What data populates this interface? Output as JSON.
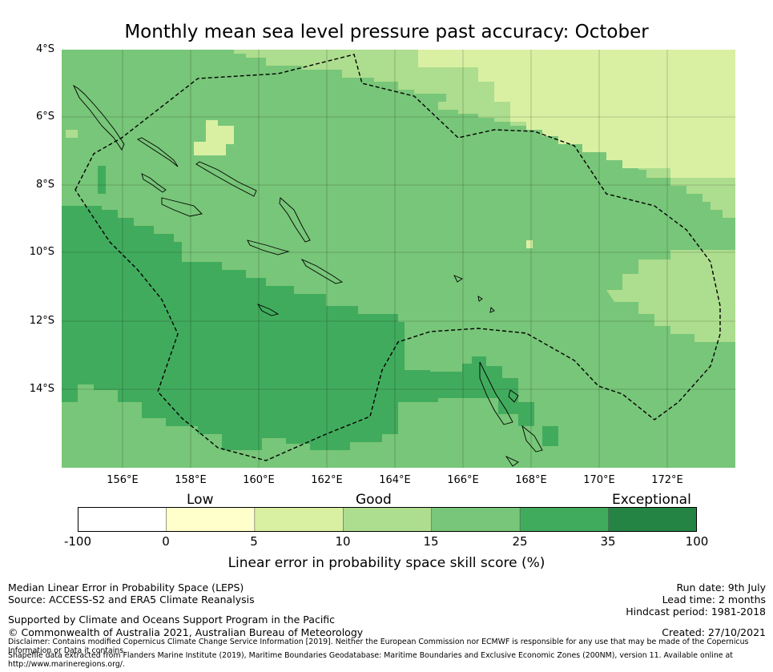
{
  "title": "Monthly mean sea level pressure past accuracy: October",
  "map": {
    "lat_labels": [
      "4°S",
      "6°S",
      "8°S",
      "10°S",
      "12°S",
      "14°S"
    ],
    "lon_labels": [
      "156°E",
      "158°E",
      "160°E",
      "162°E",
      "164°E",
      "166°E",
      "168°E",
      "170°E",
      "172°E"
    ],
    "extent": {
      "lon_min": 154.2,
      "lon_max": 174.0,
      "lat_min": -16.5,
      "lat_max": -4.0
    }
  },
  "colorbar": {
    "bands": [
      {
        "from": -100,
        "to": 0,
        "color": "#ffffff"
      },
      {
        "from": 0,
        "to": 5,
        "color": "#ffffcc"
      },
      {
        "from": 5,
        "to": 10,
        "color": "#d9f0a3"
      },
      {
        "from": 10,
        "to": 15,
        "color": "#addd8e"
      },
      {
        "from": 15,
        "to": 25,
        "color": "#78c679"
      },
      {
        "from": 25,
        "to": 35,
        "color": "#41ab5d"
      },
      {
        "from": 35,
        "to": 100,
        "color": "#238443"
      }
    ],
    "tick_labels": [
      "-100",
      "0",
      "5",
      "10",
      "15",
      "25",
      "35",
      "100"
    ],
    "category_labels": [
      "Low",
      "Good",
      "Exceptional"
    ],
    "title": "Linear error in probability space skill score (%)"
  },
  "footer": {
    "left1": "Median Linear Error in Probability Space (LEPS)",
    "left2": "Source: ACCESS-S2 and ERA5 Climate Reanalysis",
    "left3": "Supported by Climate and Oceans Support Program in the Pacific",
    "left4": "© Commonwealth of Australia 2021, Australian Bureau of Meteorology",
    "disclaimer1": "Disclaimer: Contains modified Copernicus Climate Change Service Information [2019]. Neither the European Commission nor ECMWF is responsible for any use that may be made of the Copernicus Information or Data it contains.",
    "disclaimer2": "Shapefile data extracted from Flanders Marine Institute (2019), Maritime Boundaries Geodatabase: Maritime Boundaries and Exclusive Economic Zones (200NM), version 11. Available online at http://www.marineregions.org/.",
    "right1": "Run date: 9th July",
    "right2": "Lead time: 2 months",
    "right3": "Hindcast period: 1981-2018",
    "right4": "Created: 27/10/2021"
  }
}
